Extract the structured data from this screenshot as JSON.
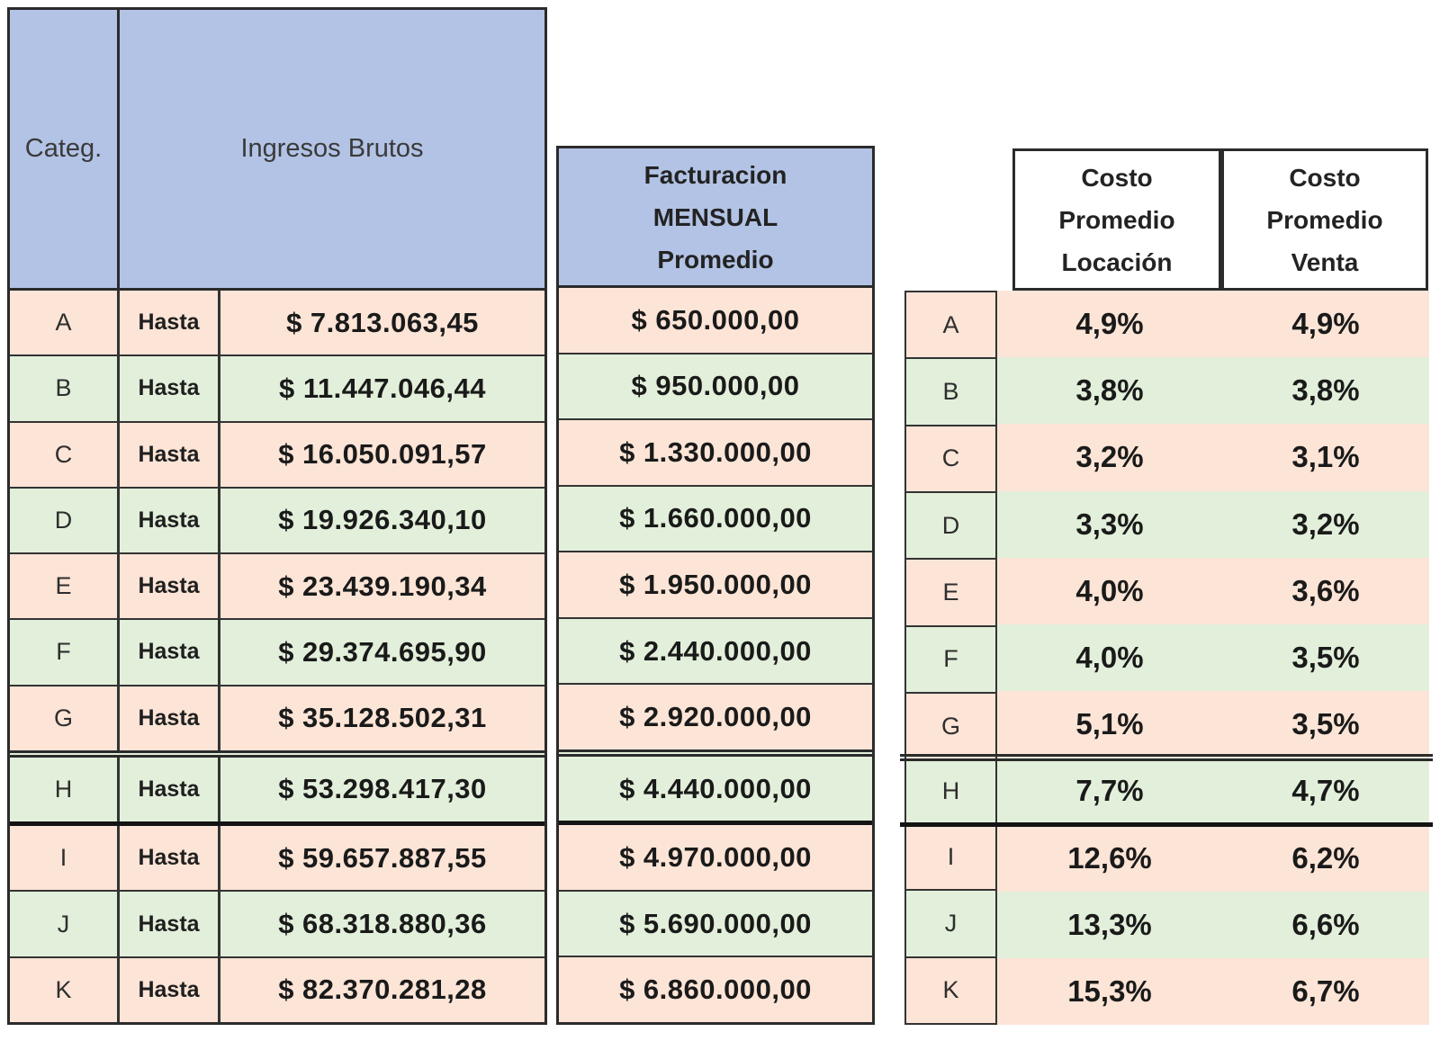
{
  "tables": {
    "left": {
      "categ_header": "Categ.",
      "ingresos_header": "Ingresos Brutos"
    },
    "middle": {
      "header_lines": [
        "Facturacion",
        "MENSUAL",
        "Promedio"
      ]
    },
    "right": {
      "locacion_header_lines": [
        "Costo",
        "Promedio",
        "Locación"
      ],
      "venta_header_lines": [
        "Costo",
        "Promedio",
        "Venta"
      ]
    }
  },
  "rows": [
    {
      "categ": "A",
      "hasta": "Hasta",
      "ingresos": "$ 7.813.063,45",
      "facturacion": "$ 650.000,00",
      "locacion": "4,9%",
      "venta": "4,9%",
      "tone": "pink"
    },
    {
      "categ": "B",
      "hasta": "Hasta",
      "ingresos": "$ 11.447.046,44",
      "facturacion": "$ 950.000,00",
      "locacion": "3,8%",
      "venta": "3,8%",
      "tone": "green"
    },
    {
      "categ": "C",
      "hasta": "Hasta",
      "ingresos": "$ 16.050.091,57",
      "facturacion": "$ 1.330.000,00",
      "locacion": "3,2%",
      "venta": "3,1%",
      "tone": "pink"
    },
    {
      "categ": "D",
      "hasta": "Hasta",
      "ingresos": "$ 19.926.340,10",
      "facturacion": "$ 1.660.000,00",
      "locacion": "3,3%",
      "venta": "3,2%",
      "tone": "green"
    },
    {
      "categ": "E",
      "hasta": "Hasta",
      "ingresos": "$ 23.439.190,34",
      "facturacion": "$ 1.950.000,00",
      "locacion": "4,0%",
      "venta": "3,6%",
      "tone": "pink"
    },
    {
      "categ": "F",
      "hasta": "Hasta",
      "ingresos": "$ 29.374.695,90",
      "facturacion": "$ 2.440.000,00",
      "locacion": "4,0%",
      "venta": "3,5%",
      "tone": "green"
    },
    {
      "categ": "G",
      "hasta": "Hasta",
      "ingresos": "$ 35.128.502,31",
      "facturacion": "$ 2.920.000,00",
      "locacion": "5,1%",
      "venta": "3,5%",
      "tone": "pink"
    },
    {
      "categ": "H",
      "hasta": "Hasta",
      "ingresos": "$ 53.298.417,30",
      "facturacion": "$ 4.440.000,00",
      "locacion": "7,7%",
      "venta": "4,7%",
      "tone": "green"
    },
    {
      "categ": "I",
      "hasta": "Hasta",
      "ingresos": "$ 59.657.887,55",
      "facturacion": "$ 4.970.000,00",
      "locacion": "12,6%",
      "venta": "6,2%",
      "tone": "pink"
    },
    {
      "categ": "J",
      "hasta": "Hasta",
      "ingresos": "$ 68.318.880,36",
      "facturacion": "$ 5.690.000,00",
      "locacion": "13,3%",
      "venta": "6,6%",
      "tone": "green"
    },
    {
      "categ": "K",
      "hasta": "Hasta",
      "ingresos": "$ 82.370.281,28",
      "facturacion": "$ 6.860.000,00",
      "locacion": "15,3%",
      "venta": "6,7%",
      "tone": "pink"
    }
  ],
  "colors": {
    "header_blue": "#b2c3e5",
    "row_pink": "#fce4d6",
    "row_green": "#e2efda",
    "border_dark": "#2b2b2b",
    "text": "#1a1a1a"
  },
  "chart_data": {
    "type": "table",
    "title": "",
    "columns": [
      "Categ.",
      "Ingresos Brutos (Hasta)",
      "Facturacion MENSUAL Promedio",
      "Costo Promedio Locación",
      "Costo Promedio Venta"
    ],
    "rows": [
      [
        "A",
        "$ 7.813.063,45",
        "$ 650.000,00",
        "4,9%",
        "4,9%"
      ],
      [
        "B",
        "$ 11.447.046,44",
        "$ 950.000,00",
        "3,8%",
        "3,8%"
      ],
      [
        "C",
        "$ 16.050.091,57",
        "$ 1.330.000,00",
        "3,2%",
        "3,1%"
      ],
      [
        "D",
        "$ 19.926.340,10",
        "$ 1.660.000,00",
        "3,3%",
        "3,2%"
      ],
      [
        "E",
        "$ 23.439.190,34",
        "$ 1.950.000,00",
        "4,0%",
        "3,6%"
      ],
      [
        "F",
        "$ 29.374.695,90",
        "$ 2.440.000,00",
        "4,0%",
        "3,5%"
      ],
      [
        "G",
        "$ 35.128.502,31",
        "$ 2.920.000,00",
        "5,1%",
        "3,5%"
      ],
      [
        "H",
        "$ 53.298.417,30",
        "$ 4.440.000,00",
        "7,7%",
        "4,7%"
      ],
      [
        "I",
        "$ 59.657.887,55",
        "$ 4.970.000,00",
        "12,6%",
        "6,2%"
      ],
      [
        "J",
        "$ 68.318.880,36",
        "$ 5.690.000,00",
        "13,3%",
        "6,6%"
      ],
      [
        "K",
        "$ 82.370.281,28",
        "$ 6.860.000,00",
        "15,3%",
        "6,7%"
      ]
    ]
  }
}
